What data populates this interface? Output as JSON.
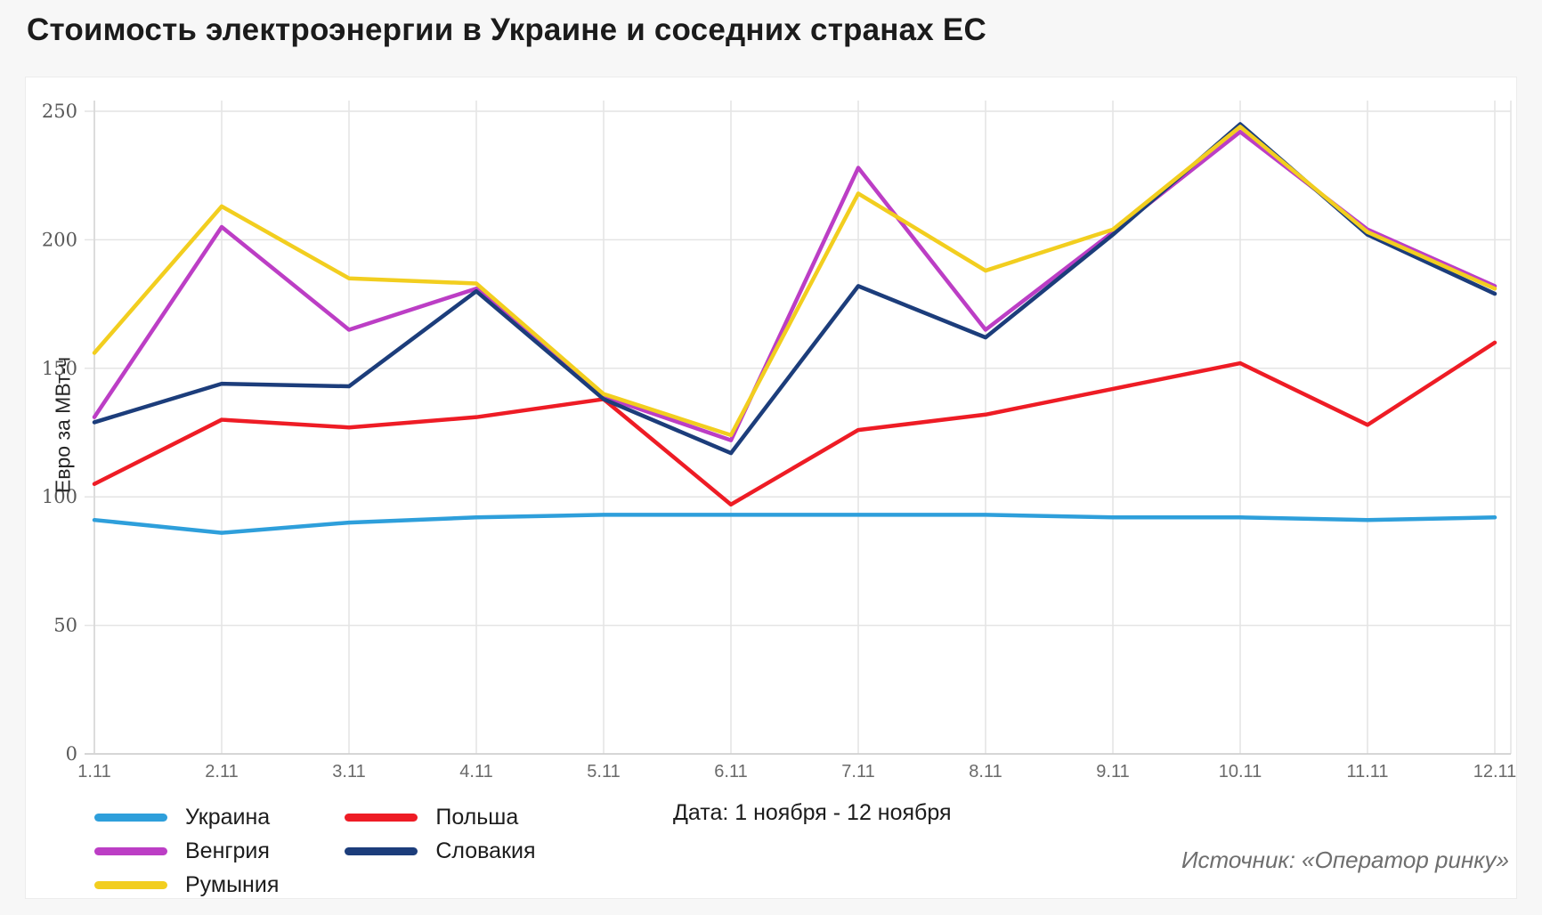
{
  "title": "Стоимость электроэнергии в Украине и соседних странах ЕС",
  "chart_data": {
    "type": "line",
    "x": [
      "1.11",
      "2.11",
      "3.11",
      "4.11",
      "5.11",
      "6.11",
      "7.11",
      "8.11",
      "9.11",
      "10.11",
      "11.11",
      "12.11"
    ],
    "series": [
      {
        "name": "Украина",
        "color": "#2E9FDB",
        "values": [
          91,
          86,
          90,
          92,
          93,
          93,
          93,
          93,
          92,
          92,
          91,
          92
        ]
      },
      {
        "name": "Польша",
        "color": "#EE1C25",
        "values": [
          105,
          130,
          127,
          131,
          138,
          97,
          126,
          132,
          142,
          152,
          128,
          160
        ]
      },
      {
        "name": "Венгрия",
        "color": "#BC3EC5",
        "values": [
          131,
          205,
          165,
          181,
          139,
          122,
          228,
          165,
          203,
          242,
          204,
          182
        ]
      },
      {
        "name": "Словакия",
        "color": "#1C3D7B",
        "values": [
          129,
          144,
          143,
          180,
          138,
          117,
          182,
          162,
          202,
          245,
          202,
          179
        ]
      },
      {
        "name": "Румыния",
        "color": "#F2CE1F",
        "values": [
          156,
          213,
          185,
          183,
          140,
          124,
          218,
          188,
          204,
          244,
          203,
          181
        ]
      }
    ],
    "title": "Стоимость электроэнергии в Украине и соседних странах ЕС",
    "xlabel": "",
    "ylabel": "Евро за МВт-ч",
    "yticks": [
      0,
      50,
      100,
      150,
      200,
      250
    ],
    "ylim": [
      0,
      250
    ],
    "grid": true,
    "legend_position": "bottom-left"
  },
  "legend": {
    "order": [
      0,
      2,
      4,
      1,
      3
    ]
  },
  "footer": {
    "date_note": "Дата: 1 ноября - 12 ноября",
    "source": "Источник: «Оператор ринку»"
  },
  "colors": {
    "page_background": "#f7f7f7",
    "card_background": "#ffffff",
    "gridline": "#e4e4e4",
    "zero_line": "#c9c9c9",
    "axis_line": "#d6d6d6"
  }
}
